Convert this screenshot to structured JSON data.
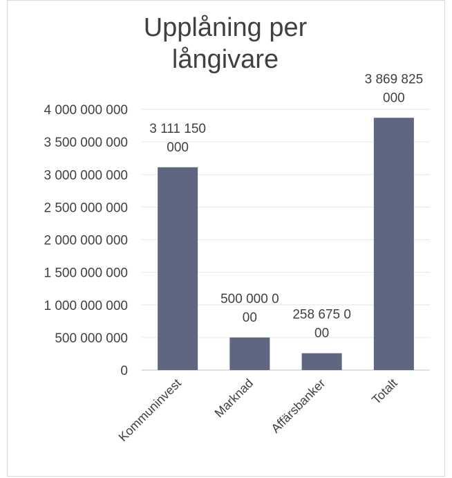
{
  "chart_data": {
    "type": "bar",
    "title_lines": [
      "Upplåning per",
      "långivare"
    ],
    "categories": [
      "Kommuninvest",
      "Marknad",
      "Affärsbanker",
      "Totalt"
    ],
    "values": [
      3111150000,
      500000000,
      258675000,
      3869825000
    ],
    "data_labels": [
      [
        "3 111 150",
        "000"
      ],
      [
        "500 000 0",
        "00"
      ],
      [
        "258 675 0",
        "00"
      ],
      [
        "3 869 825",
        "000"
      ]
    ],
    "y_ticks": [
      "0",
      "500 000 000",
      "1 000 000 000",
      "1 500 000 000",
      "2 000 000 000",
      "2 500 000 000",
      "3 000 000 000",
      "3 500 000 000",
      "4 000 000 000"
    ],
    "ylim": [
      0,
      4000000000
    ],
    "grid": true,
    "colors": {
      "bar": "#5f6680",
      "grid": "#e6e6e6",
      "axis": "#bfbfbf",
      "text": "#404040"
    }
  }
}
